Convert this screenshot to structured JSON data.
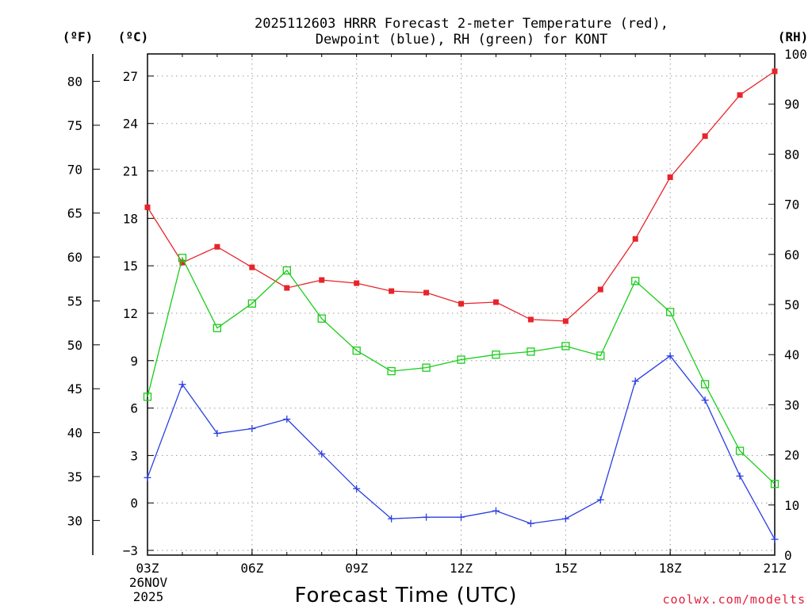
{
  "chart_data": {
    "type": "line",
    "title_line1": "2025112603 HRRR Forecast 2-meter Temperature (red),",
    "title_line2": "Dewpoint (blue), RH (green) for KONT",
    "xlabel": "Forecast Time (UTC)",
    "credit": "coolwx.com/modelts",
    "unit_f": "(ºF)",
    "unit_c": "(ºC)",
    "unit_rh": "(RH)",
    "x_hours": [
      3,
      4,
      5,
      6,
      7,
      8,
      9,
      10,
      11,
      12,
      13,
      14,
      15,
      16,
      17,
      18,
      19,
      20,
      21
    ],
    "xlim": [
      3,
      21
    ],
    "x_ticks": [
      {
        "hour": 3,
        "label": "03Z"
      },
      {
        "hour": 6,
        "label": "06Z"
      },
      {
        "hour": 9,
        "label": "09Z"
      },
      {
        "hour": 12,
        "label": "12Z"
      },
      {
        "hour": 15,
        "label": "15Z"
      },
      {
        "hour": 18,
        "label": "18Z"
      },
      {
        "hour": 21,
        "label": "21Z"
      }
    ],
    "date_label_line1": "26NOV",
    "date_label_line2": "2025",
    "ylim_c": [
      -3.3,
      28.4
    ],
    "y_ticks_c": [
      -3,
      0,
      3,
      6,
      9,
      12,
      15,
      18,
      21,
      24,
      27
    ],
    "y_ticks_f": [
      30,
      35,
      40,
      45,
      50,
      55,
      60,
      65,
      70,
      75,
      80
    ],
    "ylim_rh": [
      0,
      100
    ],
    "y_ticks_rh": [
      0,
      10,
      20,
      30,
      40,
      50,
      60,
      70,
      80,
      90,
      100
    ],
    "series": [
      {
        "name": "Temperature",
        "axis": "c",
        "color": "#e8242a",
        "marker": "filled-square",
        "values": [
          18.7,
          15.2,
          16.2,
          14.9,
          13.6,
          14.1,
          13.9,
          13.4,
          13.3,
          12.6,
          12.7,
          11.6,
          11.5,
          13.5,
          16.7,
          20.6,
          23.2,
          25.8,
          27.3
        ]
      },
      {
        "name": "Dewpoint",
        "axis": "c",
        "color": "#2a3fe0",
        "marker": "plus",
        "values": [
          1.6,
          7.5,
          4.4,
          4.7,
          5.3,
          3.1,
          0.9,
          -1.0,
          -0.9,
          -0.9,
          -0.5,
          -1.3,
          -1.0,
          0.2,
          7.7,
          9.3,
          6.5,
          1.7,
          -2.3
        ]
      },
      {
        "name": "RH",
        "axis": "rh",
        "color": "#19cc19",
        "marker": "open-square",
        "values": [
          31.6,
          59.3,
          45.3,
          50.2,
          56.8,
          47.2,
          40.8,
          36.7,
          37.4,
          39.0,
          40.0,
          40.6,
          41.7,
          39.8,
          54.7,
          48.5,
          34.1,
          20.8,
          14.2
        ]
      }
    ]
  }
}
